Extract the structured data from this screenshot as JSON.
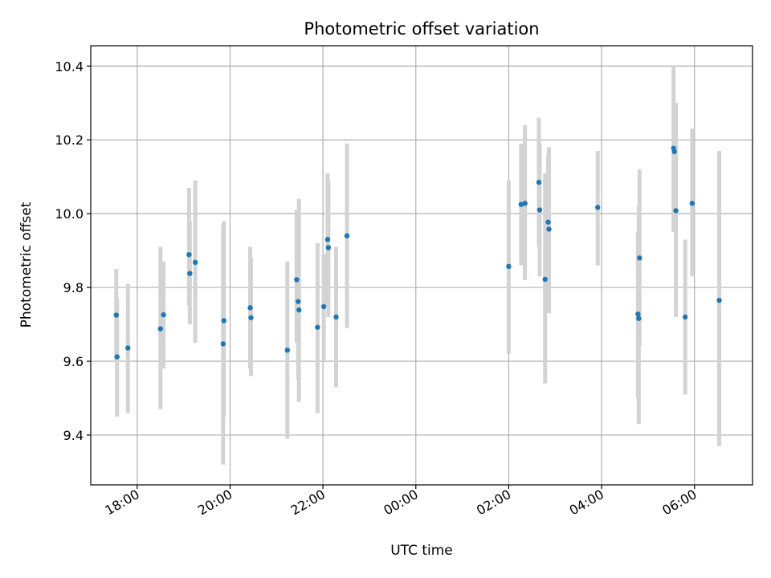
{
  "chart_data": {
    "type": "scatter",
    "title": "Photometric offset variation",
    "xlabel": "UTC time",
    "ylabel": "Photometric offset",
    "xlim": [
      "17:00",
      "07:15"
    ],
    "ylim": [
      9.265,
      10.455
    ],
    "x_ticks": [
      "18:00",
      "20:00",
      "22:00",
      "00:00",
      "02:00",
      "04:00",
      "06:00"
    ],
    "y_ticks": [
      9.4,
      9.6,
      9.8,
      10.0,
      10.2,
      10.4
    ],
    "grid": true,
    "colors": {
      "points": "#1f77b4",
      "error_bars": "#d3d3d3",
      "grid": "#b0b0b0"
    },
    "points": [
      {
        "x": "17:33",
        "y": 9.725,
        "ylow": 9.6,
        "yhigh": 9.85
      },
      {
        "x": "17:34",
        "y": 9.612,
        "ylow": 9.45,
        "yhigh": 9.77
      },
      {
        "x": "17:48",
        "y": 9.636,
        "ylow": 9.46,
        "yhigh": 9.81
      },
      {
        "x": "18:30",
        "y": 9.688,
        "ylow": 9.47,
        "yhigh": 9.91
      },
      {
        "x": "18:34",
        "y": 9.726,
        "ylow": 9.58,
        "yhigh": 9.87
      },
      {
        "x": "19:07",
        "y": 9.889,
        "ylow": 9.75,
        "yhigh": 10.07
      },
      {
        "x": "19:08",
        "y": 9.838,
        "ylow": 9.7,
        "yhigh": 9.98
      },
      {
        "x": "19:15",
        "y": 9.868,
        "ylow": 9.65,
        "yhigh": 10.09
      },
      {
        "x": "19:51",
        "y": 9.647,
        "ylow": 9.32,
        "yhigh": 9.97
      },
      {
        "x": "19:52",
        "y": 9.71,
        "ylow": 9.45,
        "yhigh": 9.98
      },
      {
        "x": "20:26",
        "y": 9.745,
        "ylow": 9.58,
        "yhigh": 9.91
      },
      {
        "x": "20:27",
        "y": 9.718,
        "ylow": 9.56,
        "yhigh": 9.88
      },
      {
        "x": "21:14",
        "y": 9.63,
        "ylow": 9.39,
        "yhigh": 9.87
      },
      {
        "x": "21:26",
        "y": 9.821,
        "ylow": 9.65,
        "yhigh": 10.01
      },
      {
        "x": "21:28",
        "y": 9.762,
        "ylow": 9.55,
        "yhigh": 9.98
      },
      {
        "x": "21:29",
        "y": 9.739,
        "ylow": 9.49,
        "yhigh": 10.04
      },
      {
        "x": "21:53",
        "y": 9.692,
        "ylow": 9.46,
        "yhigh": 9.92
      },
      {
        "x": "22:01",
        "y": 9.748,
        "ylow": 9.6,
        "yhigh": 9.89
      },
      {
        "x": "22:06",
        "y": 9.93,
        "ylow": 9.75,
        "yhigh": 10.11
      },
      {
        "x": "22:07",
        "y": 9.908,
        "ylow": 9.72,
        "yhigh": 10.09
      },
      {
        "x": "22:17",
        "y": 9.72,
        "ylow": 9.53,
        "yhigh": 9.91
      },
      {
        "x": "22:31",
        "y": 9.94,
        "ylow": 9.69,
        "yhigh": 10.19
      },
      {
        "x": "02:00",
        "y": 9.857,
        "ylow": 9.62,
        "yhigh": 10.09
      },
      {
        "x": "02:16",
        "y": 10.025,
        "ylow": 9.86,
        "yhigh": 10.19
      },
      {
        "x": "02:21",
        "y": 10.028,
        "ylow": 9.82,
        "yhigh": 10.24
      },
      {
        "x": "02:39",
        "y": 10.085,
        "ylow": 9.91,
        "yhigh": 10.26
      },
      {
        "x": "02:40",
        "y": 10.01,
        "ylow": 9.83,
        "yhigh": 10.19
      },
      {
        "x": "02:47",
        "y": 9.822,
        "ylow": 9.54,
        "yhigh": 10.11
      },
      {
        "x": "02:51",
        "y": 9.977,
        "ylow": 9.8,
        "yhigh": 10.16
      },
      {
        "x": "02:52",
        "y": 9.958,
        "ylow": 9.73,
        "yhigh": 10.18
      },
      {
        "x": "03:55",
        "y": 10.017,
        "ylow": 9.86,
        "yhigh": 10.17
      },
      {
        "x": "04:47",
        "y": 9.728,
        "ylow": 9.5,
        "yhigh": 9.95
      },
      {
        "x": "04:48",
        "y": 9.716,
        "ylow": 9.43,
        "yhigh": 10.02
      },
      {
        "x": "04:49",
        "y": 9.88,
        "ylow": 9.64,
        "yhigh": 10.12
      },
      {
        "x": "05:33",
        "y": 10.177,
        "ylow": 9.95,
        "yhigh": 10.4
      },
      {
        "x": "05:34",
        "y": 10.168,
        "ylow": 10.04,
        "yhigh": 10.3
      },
      {
        "x": "05:36",
        "y": 10.008,
        "ylow": 9.72,
        "yhigh": 10.3
      },
      {
        "x": "05:48",
        "y": 9.72,
        "ylow": 9.51,
        "yhigh": 9.93
      },
      {
        "x": "05:57",
        "y": 10.028,
        "ylow": 9.83,
        "yhigh": 10.23
      },
      {
        "x": "06:32",
        "y": 9.765,
        "ylow": 9.37,
        "yhigh": 10.17
      }
    ]
  }
}
